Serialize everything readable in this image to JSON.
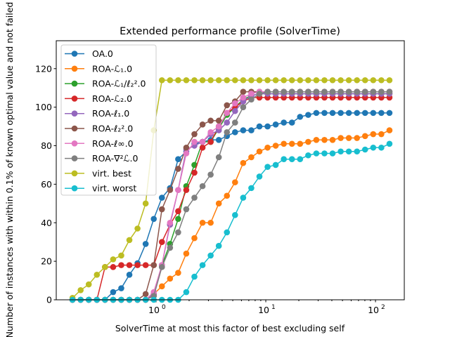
{
  "chart_data": {
    "type": "line",
    "title": "Extended performance profile (SolverTime)",
    "xlabel": "SolverTime at most this factor of best excluding self",
    "ylabel": "Number of instances with within 0.1% of known optimal value and not failed",
    "xscale": "log",
    "xlim": [
      0.123,
      183
    ],
    "ylim": [
      0,
      134.5
    ],
    "x_start": 0.173,
    "x_ratio": 1.186,
    "num_points": 40,
    "xticks": [
      {
        "value": 1,
        "label": "10",
        "exp": "0"
      },
      {
        "value": 10,
        "label": "10",
        "exp": "1"
      },
      {
        "value": 100,
        "label": "10",
        "exp": "2"
      }
    ],
    "yticks": [
      0,
      20,
      40,
      60,
      80,
      100,
      120
    ],
    "legend_position": "upper-left",
    "grid": false,
    "series": [
      {
        "name": "OA.0",
        "color": "#1f77b4",
        "values": [
          0,
          0,
          0,
          0,
          0,
          4,
          6,
          13,
          19,
          29,
          42,
          53,
          58,
          73,
          77,
          81,
          82,
          83,
          83,
          85,
          87,
          88,
          88,
          90,
          90,
          91,
          92,
          92,
          95,
          96,
          97,
          97,
          97,
          97,
          97,
          97,
          97,
          97,
          97,
          97
        ]
      },
      {
        "name": "ROA-ℒ₁.0",
        "color": "#ff7f0e",
        "values": [
          0,
          0,
          0,
          0,
          0,
          0,
          0,
          0,
          0,
          0,
          3,
          7,
          11,
          14,
          24,
          32,
          40,
          40,
          50,
          54,
          61,
          71,
          74,
          77,
          79,
          80,
          81,
          81,
          81,
          82,
          83,
          83,
          83,
          84,
          84,
          84,
          85,
          86,
          86,
          88
        ]
      },
      {
        "name": "ROA-ℒ₁/ℓ₂².0",
        "color": "#2ca02c",
        "values": [
          0,
          0,
          0,
          0,
          0,
          0,
          0,
          0,
          0,
          0,
          2,
          18,
          29,
          42,
          59,
          70,
          82,
          82,
          89,
          96,
          100,
          104,
          106,
          107,
          107,
          107,
          107,
          107,
          107,
          107,
          107,
          107,
          107,
          107,
          107,
          107,
          107,
          107,
          107,
          107
        ]
      },
      {
        "name": "ROA-ℒ₂.0",
        "color": "#d62728",
        "values": [
          0,
          0,
          0,
          0,
          17,
          17,
          18,
          18,
          18,
          18,
          18,
          30,
          39,
          46,
          57,
          66,
          79,
          82,
          90,
          97,
          100,
          103,
          105,
          105,
          105,
          105,
          105,
          105,
          105,
          105,
          105,
          105,
          105,
          105,
          105,
          105,
          105,
          105,
          105,
          105
        ]
      },
      {
        "name": "ROA-ℓ₁.0",
        "color": "#9467bd",
        "values": [
          0,
          0,
          0,
          0,
          0,
          0,
          0,
          0,
          0,
          0,
          3,
          18,
          39,
          57,
          78,
          80,
          82,
          86,
          88,
          92,
          98,
          103,
          106,
          107,
          107,
          107,
          107,
          107,
          107,
          107,
          107,
          107,
          107,
          107,
          107,
          107,
          107,
          107,
          107,
          107
        ]
      },
      {
        "name": "ROA-ℓ₂².0",
        "color": "#8c564b",
        "values": [
          0,
          0,
          0,
          0,
          0,
          0,
          0,
          0,
          0,
          3,
          18,
          47,
          57,
          68,
          79,
          86,
          91,
          93,
          93,
          101,
          103,
          108,
          108,
          108,
          108,
          108,
          108,
          108,
          108,
          108,
          108,
          108,
          108,
          108,
          108,
          108,
          108,
          108,
          108,
          108
        ]
      },
      {
        "name": "ROA-ℓ∞.0",
        "color": "#e377c2",
        "values": [
          0,
          0,
          0,
          0,
          0,
          0,
          0,
          0,
          0,
          0,
          4,
          18,
          40,
          57,
          76,
          82,
          82,
          87,
          90,
          97,
          102,
          105,
          107,
          108,
          108,
          108,
          108,
          108,
          108,
          108,
          108,
          108,
          108,
          108,
          108,
          108,
          108,
          108,
          108,
          108
        ]
      },
      {
        "name": "ROA-∇²ℒ.0",
        "color": "#7f7f7f",
        "values": [
          0,
          0,
          0,
          0,
          0,
          0,
          0,
          0,
          0,
          0,
          2,
          17,
          27,
          35,
          47,
          53,
          59,
          65,
          74,
          87,
          92,
          100,
          104,
          107,
          108,
          108,
          108,
          108,
          108,
          108,
          108,
          108,
          108,
          108,
          108,
          108,
          108,
          108,
          108,
          108
        ]
      },
      {
        "name": "virt. best",
        "color": "#bcbd22",
        "values": [
          1,
          5,
          8,
          13,
          17,
          21,
          23,
          31,
          37,
          50,
          88,
          114,
          114,
          114,
          114,
          114,
          114,
          114,
          114,
          114,
          114,
          114,
          114,
          114,
          114,
          114,
          114,
          114,
          114,
          114,
          114,
          114,
          114,
          114,
          114,
          114,
          114,
          114,
          114,
          114
        ]
      },
      {
        "name": "virt. worst",
        "color": "#17becf",
        "values": [
          0,
          0,
          0,
          0,
          0,
          0,
          0,
          0,
          0,
          0,
          0,
          0,
          0,
          0,
          4,
          12,
          18,
          23,
          28,
          35,
          44,
          53,
          58,
          64,
          69,
          70,
          73,
          73,
          73,
          75,
          76,
          76,
          76,
          77,
          77,
          77,
          78,
          79,
          79,
          81
        ]
      }
    ]
  }
}
